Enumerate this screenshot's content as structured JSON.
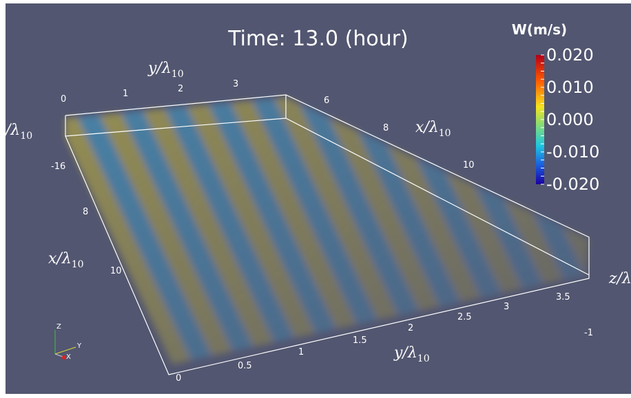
{
  "title": "Time: 13.0 (hour)",
  "colorbar": {
    "title": "W(m/s)",
    "ticks": [
      "0.020",
      "0.010",
      "0.000",
      "-0.010",
      "-0.020"
    ]
  },
  "axis_labels": {
    "top_y": {
      "base": "y/λ",
      "sub": "10"
    },
    "top_x": {
      "base": "x/λ",
      "sub": "10"
    },
    "left_z": {
      "base": "/λ",
      "sub": "10"
    },
    "left_x": {
      "base": "x/λ",
      "sub": "10"
    },
    "bottom_y": {
      "base": "y/λ",
      "sub": "10"
    },
    "right_z": "z/λ"
  },
  "tick_labels": {
    "top_y": [
      "0",
      "1",
      "2",
      "3"
    ],
    "top_x": [
      "6",
      "8",
      "10"
    ],
    "left": [
      "-16",
      "8",
      "10"
    ],
    "bottom_y": [
      "0",
      "0.5",
      "1",
      "1.5",
      "2",
      "2.5",
      "3",
      "3.5"
    ],
    "right_z": [
      "-1"
    ]
  },
  "triad": [
    "Z",
    "Y",
    "X"
  ]
}
